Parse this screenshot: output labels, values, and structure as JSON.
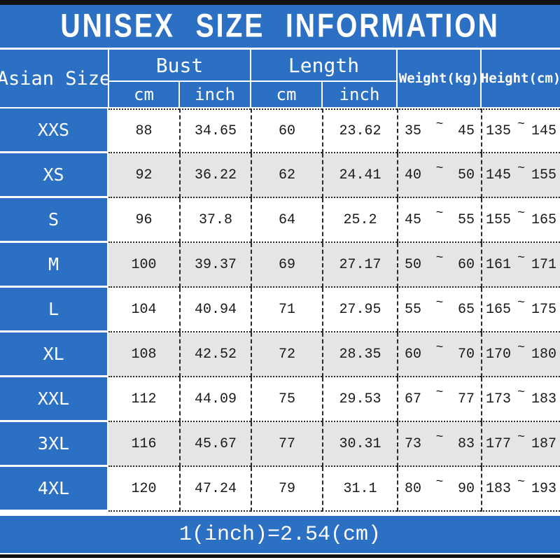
{
  "title": "UNISEX SIZE INFORMATION",
  "header": {
    "corner": "Asian Size",
    "bust": "Bust",
    "length": "Length",
    "weight": "Weight(kg)",
    "height": "Height(cm)",
    "sub_cm": "cm",
    "sub_inch": "inch"
  },
  "tilde": "~",
  "rows": [
    {
      "size": "XXS",
      "bust_cm": "88",
      "bust_inch": "34.65",
      "len_cm": "60",
      "len_inch": "23.62",
      "w_min": "35",
      "w_max": "45",
      "h_min": "135",
      "h_max": "145"
    },
    {
      "size": "XS",
      "bust_cm": "92",
      "bust_inch": "36.22",
      "len_cm": "62",
      "len_inch": "24.41",
      "w_min": "40",
      "w_max": "50",
      "h_min": "145",
      "h_max": "155"
    },
    {
      "size": "S",
      "bust_cm": "96",
      "bust_inch": "37.8",
      "len_cm": "64",
      "len_inch": "25.2",
      "w_min": "45",
      "w_max": "55",
      "h_min": "155",
      "h_max": "165"
    },
    {
      "size": "M",
      "bust_cm": "100",
      "bust_inch": "39.37",
      "len_cm": "69",
      "len_inch": "27.17",
      "w_min": "50",
      "w_max": "60",
      "h_min": "161",
      "h_max": "171"
    },
    {
      "size": "L",
      "bust_cm": "104",
      "bust_inch": "40.94",
      "len_cm": "71",
      "len_inch": "27.95",
      "w_min": "55",
      "w_max": "65",
      "h_min": "165",
      "h_max": "175"
    },
    {
      "size": "XL",
      "bust_cm": "108",
      "bust_inch": "42.52",
      "len_cm": "72",
      "len_inch": "28.35",
      "w_min": "60",
      "w_max": "70",
      "h_min": "170",
      "h_max": "180"
    },
    {
      "size": "XXL",
      "bust_cm": "112",
      "bust_inch": "44.09",
      "len_cm": "75",
      "len_inch": "29.53",
      "w_min": "67",
      "w_max": "77",
      "h_min": "173",
      "h_max": "183"
    },
    {
      "size": "3XL",
      "bust_cm": "116",
      "bust_inch": "45.67",
      "len_cm": "77",
      "len_inch": "30.31",
      "w_min": "73",
      "w_max": "83",
      "h_min": "177",
      "h_max": "187"
    },
    {
      "size": "4XL",
      "bust_cm": "120",
      "bust_inch": "47.24",
      "len_cm": "79",
      "len_inch": "31.1",
      "w_min": "80",
      "w_max": "90",
      "h_min": "183",
      "h_max": "193"
    }
  ],
  "footer_note": "1(inch)=2.54(cm)",
  "colors": {
    "blue": "#2c70c4",
    "row_alt": "#e5e5e5",
    "bar": "#111111",
    "ink": "#1a1a1a"
  },
  "chart_data": {
    "type": "table",
    "title": "UNISEX SIZE INFORMATION",
    "columns": [
      "Asian Size",
      "Bust cm",
      "Bust inch",
      "Length cm",
      "Length inch",
      "Weight(kg)",
      "Height(cm)"
    ],
    "rows": [
      [
        "XXS",
        "88",
        "34.65",
        "60",
        "23.62",
        "35~45",
        "135~145"
      ],
      [
        "XS",
        "92",
        "36.22",
        "62",
        "24.41",
        "40~50",
        "145~155"
      ],
      [
        "S",
        "96",
        "37.8",
        "64",
        "25.2",
        "45~55",
        "155~165"
      ],
      [
        "M",
        "100",
        "39.37",
        "69",
        "27.17",
        "50~60",
        "161~171"
      ],
      [
        "L",
        "104",
        "40.94",
        "71",
        "27.95",
        "55~65",
        "165~175"
      ],
      [
        "XL",
        "108",
        "42.52",
        "72",
        "28.35",
        "60~70",
        "170~180"
      ],
      [
        "XXL",
        "112",
        "44.09",
        "75",
        "29.53",
        "67~77",
        "173~183"
      ],
      [
        "3XL",
        "116",
        "45.67",
        "77",
        "30.31",
        "73~83",
        "177~187"
      ],
      [
        "4XL",
        "120",
        "47.24",
        "79",
        "31.1",
        "80~90",
        "183~193"
      ]
    ],
    "footnote": "1(inch)=2.54(cm)"
  }
}
